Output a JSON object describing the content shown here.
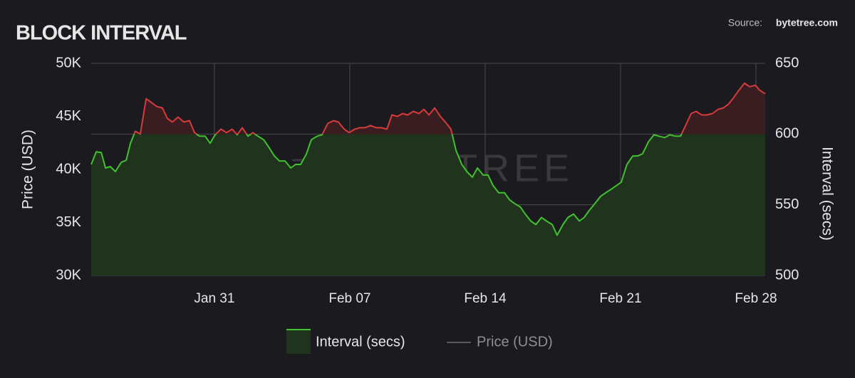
{
  "chart_data": {
    "type": "line",
    "title": "BLOCK INTERVAL",
    "source_label": "Source:",
    "source_name": "bytetree.com",
    "watermark": "BYTETREE",
    "ylabel": "Price (USD)",
    "y2label": "Interval (secs)",
    "x": [
      24.63,
      24.89,
      25.15,
      25.37,
      25.62,
      25.88,
      26.18,
      26.44,
      26.66,
      26.91,
      27.17,
      27.47,
      27.72,
      28.02,
      28.31,
      28.57,
      28.83,
      29.12,
      29.42,
      29.71,
      29.97,
      30.23,
      30.52,
      30.78,
      31.04,
      31.34,
      31.63,
      31.92,
      32.18,
      32.44,
      32.74,
      32.99,
      33.25,
      33.55,
      33.8,
      34.1,
      34.36,
      34.65,
      34.95,
      35.2,
      35.46,
      35.76,
      36.01,
      36.31,
      36.57,
      36.86,
      37.16,
      37.41,
      37.71,
      37.97,
      38.26,
      38.52,
      38.78,
      39.07,
      39.37,
      39.62,
      39.92,
      40.18,
      40.47,
      40.73,
      40.99,
      41.28,
      41.58,
      41.83,
      42.09,
      42.39,
      42.68,
      42.94,
      43.23,
      43.49,
      43.79,
      44.05,
      44.34,
      44.6,
      44.89,
      45.15,
      45.41,
      45.7,
      46.0,
      46.26,
      46.51,
      46.81,
      47.07,
      47.36,
      47.62,
      47.91,
      48.17,
      48.47,
      48.72,
      49.02,
      49.28,
      49.57,
      49.87,
      50.12,
      50.38,
      50.68,
      50.97,
      51.23,
      51.52,
      51.78,
      52.04,
      52.33,
      52.63,
      52.89,
      53.14,
      53.44,
      53.73,
      53.99,
      54.29,
      54.54,
      54.84,
      55.1,
      55.36,
      55.65,
      55.91,
      56.2,
      56.46,
      56.75,
      57.05,
      57.31,
      57.57,
      57.86,
      58.12,
      58.41,
      58.67,
      58.97,
      59.19,
      59.48
    ],
    "series": [
      {
        "name": "Interval (secs)",
        "axis": "y2",
        "color": "#3fc22e",
        "color_above": "#d63a3a",
        "fill": "#1f331d",
        "fill_above": "#3a1d21",
        "threshold": 600,
        "values": [
          578.5,
          587.5,
          587,
          576,
          577,
          573.5,
          580,
          581.5,
          593.5,
          602,
          600,
          625,
          622.5,
          619.5,
          618.5,
          611,
          608.5,
          612,
          608.5,
          609.5,
          601,
          598.5,
          598.5,
          593.5,
          599.5,
          603.5,
          601,
          603.5,
          599.5,
          604.5,
          598.5,
          601,
          598.5,
          596,
          591,
          584.5,
          581,
          581,
          576,
          578.5,
          578.5,
          586,
          596,
          598.5,
          599.5,
          607.5,
          609.5,
          608.5,
          603.5,
          601,
          603.5,
          604.5,
          604.5,
          606,
          604.5,
          604.5,
          603.5,
          613.5,
          612.5,
          614.5,
          613.5,
          616,
          614.5,
          617.5,
          613.5,
          618.5,
          612.5,
          608.5,
          603.5,
          588.5,
          578.5,
          573.5,
          569.5,
          576,
          571,
          571,
          563.5,
          558.5,
          558.5,
          553.5,
          551,
          548.5,
          543.5,
          538.5,
          536,
          541,
          538.5,
          536,
          528.5,
          536,
          541,
          543.5,
          538.5,
          541,
          546,
          551,
          556,
          558.5,
          561,
          563.5,
          566,
          578.5,
          584.5,
          584.5,
          586,
          594.5,
          599.5,
          598.5,
          597.5,
          599.5,
          598.5,
          598.5,
          606,
          614.5,
          616,
          613.5,
          613.5,
          614.5,
          617.5,
          618.5,
          621,
          626,
          631,
          636,
          633.5,
          634.5,
          631,
          628.5
        ]
      },
      {
        "name": "Price (USD)",
        "color": "#9a9a9a",
        "hidden": true
      }
    ],
    "xlim": [
      24.63,
      59.48
    ],
    "xticks": [
      {
        "value": 31,
        "label": "Jan 31"
      },
      {
        "value": 38,
        "label": "Feb 07"
      },
      {
        "value": 45,
        "label": "Feb 14"
      },
      {
        "value": 52,
        "label": "Feb 21"
      },
      {
        "value": 59,
        "label": "Feb 28"
      }
    ],
    "ylim": [
      30000,
      50000
    ],
    "yticks": [
      {
        "value": 30000,
        "label": "30K"
      },
      {
        "value": 35000,
        "label": "35K"
      },
      {
        "value": 40000,
        "label": "40K"
      },
      {
        "value": 45000,
        "label": "45K"
      },
      {
        "value": 50000,
        "label": "50K"
      }
    ],
    "y2lim": [
      500,
      650
    ],
    "y2ticks": [
      500,
      550,
      600,
      650
    ],
    "grid": true,
    "legend": "bottom"
  }
}
